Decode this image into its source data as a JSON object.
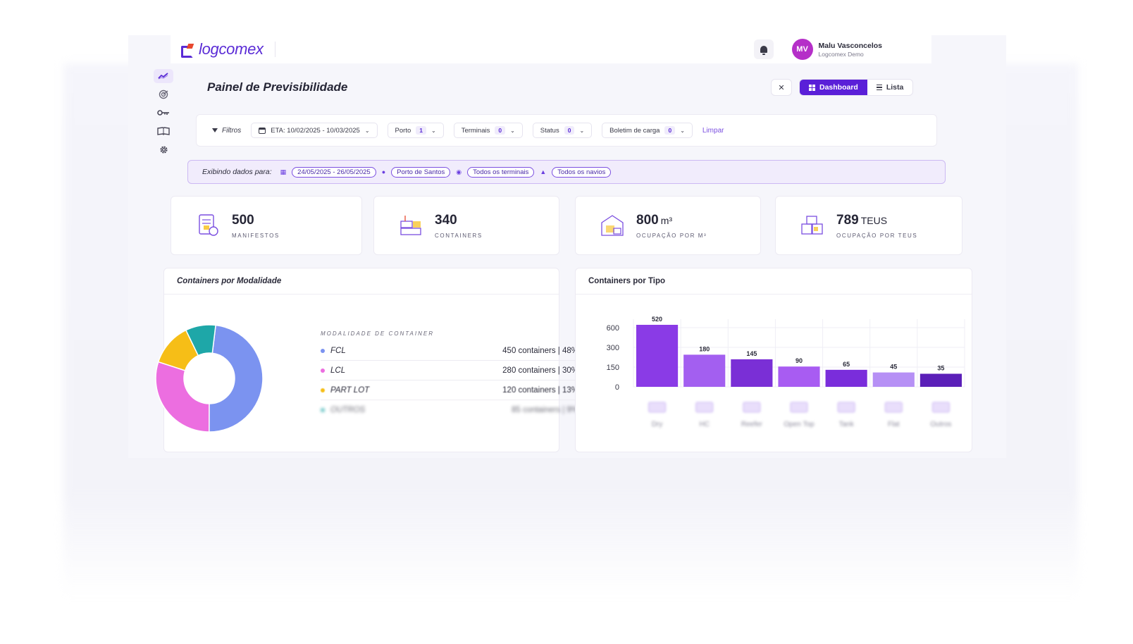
{
  "app": {
    "logo_text": "logcomex",
    "page_title": "Painel de Previsibilidade"
  },
  "user": {
    "initials": "MV",
    "name": "Malu Vasconcelos",
    "org": "Logcomex Demo"
  },
  "view": {
    "dashboard_label": "Dashboard",
    "list_label": "Lista"
  },
  "filters": {
    "label": "Filtros",
    "eta": "ETA: 10/02/2025 - 10/03/2025",
    "porto": {
      "label": "Porto",
      "count": "1"
    },
    "terminais": {
      "label": "Terminais",
      "count": "0"
    },
    "status": {
      "label": "Status",
      "count": "0"
    },
    "boletim": {
      "label": "Boletim de carga",
      "count": "0"
    },
    "clear": "Limpar"
  },
  "display": {
    "label": "Exibindo dados para:",
    "dates": "24/05/2025 - 26/05/2025",
    "port": "Porto de Santos",
    "terminals": "Todos os terminais",
    "ships": "Todos os navios"
  },
  "kpis": [
    {
      "value": "500",
      "unit": "",
      "label": "MANIFESTOS",
      "icon": "manifest-icon"
    },
    {
      "value": "340",
      "unit": "",
      "label": "CONTAINERS",
      "icon": "containers-icon"
    },
    {
      "value": "800",
      "unit": "m³",
      "label": "OCUPAÇÃO POR M³",
      "icon": "warehouse-icon"
    },
    {
      "value": "789",
      "unit": "TEUS",
      "label": "OCUPAÇÃO POR TEUS",
      "icon": "teus-icon"
    }
  ],
  "modalidade": {
    "title": "Containers por Modalidade",
    "legend_header": "MODALIDADE DE CONTAINER",
    "items": [
      {
        "name": "FCL",
        "value": "450 containers | 48%",
        "color": "#7b93f0"
      },
      {
        "name": "LCL",
        "value": "280 containers | 30%",
        "color": "#ec6ee0"
      },
      {
        "name": "PART LOT",
        "value": "120 containers | 13%",
        "color": "#f6be17"
      },
      {
        "name": "OUTROS",
        "value": "85 containers | 9%",
        "color": "#1ea7a8"
      }
    ]
  },
  "tipo": {
    "title": "Containers por Tipo"
  },
  "chart_data": [
    {
      "type": "pie",
      "title": "Containers por Modalidade",
      "categories": [
        "FCL",
        "LCL",
        "PART LOT",
        "OUTROS"
      ],
      "values": [
        450,
        280,
        120,
        85
      ],
      "colors": [
        "#7b93f0",
        "#ec6ee0",
        "#f6be17",
        "#1ea7a8"
      ],
      "donut": true
    },
    {
      "type": "bar",
      "title": "Containers por Tipo",
      "categories": [
        "Dry",
        "HC",
        "Reefer",
        "Open Top",
        "Tank",
        "Flat",
        "Outros"
      ],
      "values": [
        520,
        180,
        145,
        90,
        65,
        45,
        35
      ],
      "colors": [
        "#8a3be6",
        "#a35ff0",
        "#7a2fd6",
        "#a85cf2",
        "#7a2ddb",
        "#b690f5",
        "#5b1fb8"
      ],
      "yticks": [
        0,
        150,
        300,
        600
      ],
      "grid": true
    }
  ]
}
